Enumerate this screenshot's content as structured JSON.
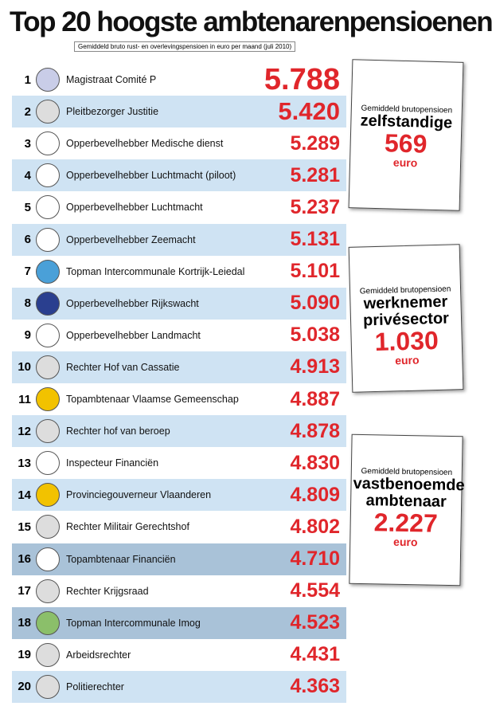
{
  "header": {
    "title": "Top 20 hoogste ambtenarenpensioenen",
    "subtitle": "Gemiddeld bruto rust- en overlevingspensioen in euro per maand (juli 2010)"
  },
  "rows": [
    {
      "rank": "1",
      "name": "Magistraat Comité P",
      "value": "5.788"
    },
    {
      "rank": "2",
      "name": "Pleitbezorger Justitie",
      "value": "5.420"
    },
    {
      "rank": "3",
      "name": "Opperbevelhebber Medische dienst",
      "value": "5.289"
    },
    {
      "rank": "4",
      "name": "Opperbevelhebber Luchtmacht (piloot)",
      "value": "5.281"
    },
    {
      "rank": "5",
      "name": "Opperbevelhebber Luchtmacht",
      "value": "5.237"
    },
    {
      "rank": "6",
      "name": "Opperbevelhebber Zeemacht",
      "value": "5.131"
    },
    {
      "rank": "7",
      "name": "Topman Intercommunale Kortrijk-Leiedal",
      "value": "5.101"
    },
    {
      "rank": "8",
      "name": "Opperbevelhebber Rijkswacht",
      "value": "5.090"
    },
    {
      "rank": "9",
      "name": "Opperbevelhebber Landmacht",
      "value": "5.038"
    },
    {
      "rank": "10",
      "name": "Rechter Hof van Cassatie",
      "value": "4.913"
    },
    {
      "rank": "11",
      "name": "Topambtenaar Vlaamse Gemeenschap",
      "value": "4.887"
    },
    {
      "rank": "12",
      "name": "Rechter hof van beroep",
      "value": "4.878"
    },
    {
      "rank": "13",
      "name": "Inspecteur Financiën",
      "value": "4.830"
    },
    {
      "rank": "14",
      "name": "Provinciegouverneur Vlaanderen",
      "value": "4.809"
    },
    {
      "rank": "15",
      "name": "Rechter Militair Gerechtshof",
      "value": "4.802"
    },
    {
      "rank": "16",
      "name": "Topambtenaar Financiën",
      "value": "4.710"
    },
    {
      "rank": "17",
      "name": "Rechter Krijgsraad",
      "value": "4.554"
    },
    {
      "rank": "18",
      "name": "Topman Intercommunale Imog",
      "value": "4.523"
    },
    {
      "rank": "19",
      "name": "Arbeidsrechter",
      "value": "4.431"
    },
    {
      "rank": "20",
      "name": "Politierechter",
      "value": "4.363"
    }
  ],
  "boxes": [
    {
      "caption": "Gemiddeld brutopensioen",
      "group": "zelfstandige",
      "amount": "569",
      "unit": "euro"
    },
    {
      "caption": "Gemiddeld brutopensioen",
      "group": "werknemer privésector",
      "amount": "1.030",
      "unit": "euro"
    },
    {
      "caption": "Gemiddeld brutopensioen",
      "group": "vastbenoemde ambtenaar",
      "amount": "2.227",
      "unit": "euro"
    }
  ]
}
